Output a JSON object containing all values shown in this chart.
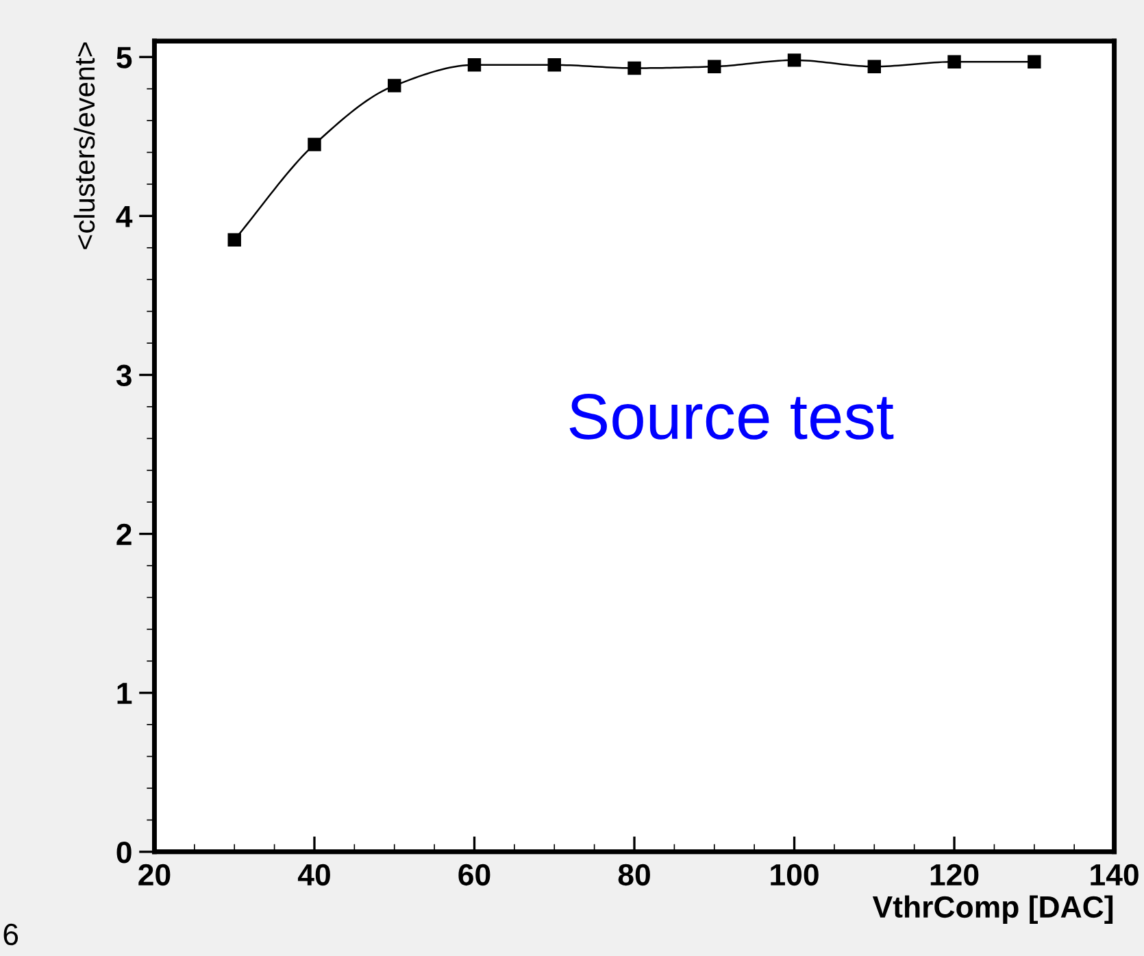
{
  "chart_data": {
    "type": "line",
    "xlabel": "VthrComp [DAC]",
    "ylabel": "<clusters/event>",
    "x": [
      30,
      40,
      50,
      60,
      70,
      80,
      90,
      100,
      110,
      120,
      130
    ],
    "series": [
      {
        "color": "#000000",
        "values": [
          3.85,
          4.45,
          4.82,
          4.95,
          4.95,
          4.93,
          4.94,
          4.98,
          4.94,
          4.97,
          4.97
        ]
      }
    ],
    "xlim": [
      20,
      140
    ],
    "xticks": [
      20,
      40,
      60,
      80,
      100,
      120,
      140
    ],
    "ylim": [
      0,
      5.1
    ],
    "yticks": [
      0,
      1,
      2,
      3,
      4,
      5
    ],
    "marker": "square",
    "line_style": "solid",
    "grid": false,
    "legend": false,
    "annotations": [
      "Source test",
      "6"
    ]
  }
}
